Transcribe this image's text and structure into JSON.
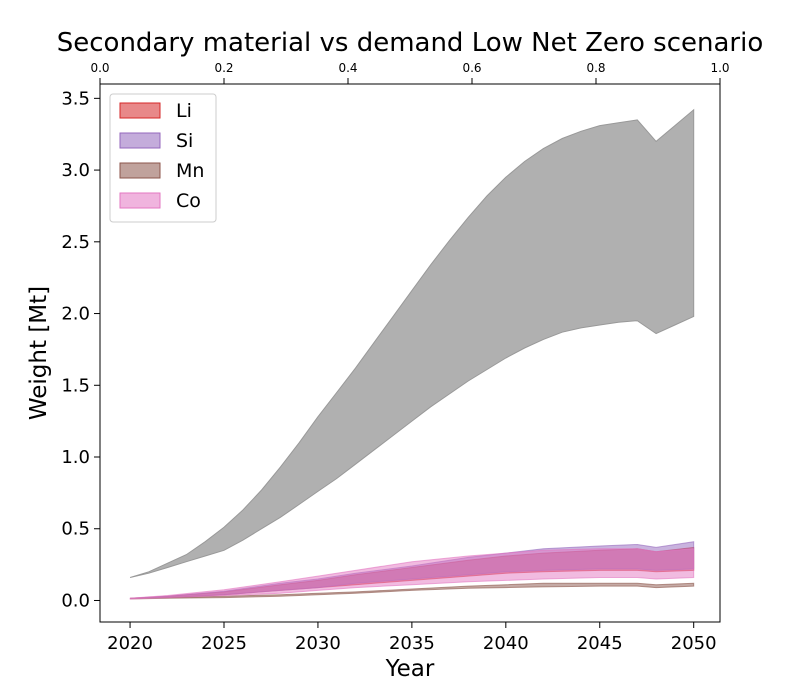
{
  "chart_data": {
    "type": "area",
    "title": "Secondary material vs demand Low Net Zero scenario",
    "xlabel": "Year",
    "ylabel": "Weight [Mt]",
    "xlim": [
      2018.4,
      2051.4
    ],
    "ylim": [
      -0.15,
      3.6
    ],
    "x_ticks": [
      "2020",
      "2025",
      "2030",
      "2035",
      "2040",
      "2045",
      "2050"
    ],
    "y_ticks": [
      "0.0",
      "0.5",
      "1.0",
      "1.5",
      "2.0",
      "2.5",
      "3.0",
      "3.5"
    ],
    "top_axis_ticks": [
      "0.0",
      "0.2",
      "0.4",
      "0.6",
      "0.8",
      "1.0"
    ],
    "grid": false,
    "legend_position": "top-left",
    "demand_band": {
      "color": "#b0b0b0",
      "x": [
        2020,
        2021,
        2022,
        2023,
        2024,
        2025,
        2026,
        2027,
        2028,
        2029,
        2030,
        2031,
        2032,
        2033,
        2034,
        2035,
        2036,
        2037,
        2038,
        2039,
        2040,
        2041,
        2042,
        2043,
        2044,
        2045,
        2046,
        2047,
        2048,
        2049,
        2050
      ],
      "upper": [
        0.16,
        0.2,
        0.26,
        0.32,
        0.41,
        0.51,
        0.63,
        0.77,
        0.93,
        1.1,
        1.28,
        1.45,
        1.62,
        1.8,
        1.98,
        2.16,
        2.34,
        2.51,
        2.67,
        2.82,
        2.95,
        3.06,
        3.15,
        3.22,
        3.27,
        3.31,
        3.33,
        3.35,
        3.2,
        3.31,
        3.42
      ],
      "lower": [
        0.16,
        0.19,
        0.23,
        0.27,
        0.31,
        0.35,
        0.42,
        0.5,
        0.58,
        0.67,
        0.76,
        0.85,
        0.95,
        1.05,
        1.15,
        1.25,
        1.35,
        1.44,
        1.53,
        1.61,
        1.69,
        1.76,
        1.82,
        1.87,
        1.9,
        1.92,
        1.94,
        1.95,
        1.86,
        1.92,
        1.98
      ]
    },
    "series": [
      {
        "name": "Li",
        "color": "#d62728",
        "x": [
          2020,
          2022,
          2025,
          2028,
          2030,
          2032,
          2035,
          2038,
          2040,
          2042,
          2045,
          2047,
          2048,
          2050
        ],
        "lower": [
          0.015,
          0.02,
          0.04,
          0.07,
          0.09,
          0.11,
          0.14,
          0.17,
          0.19,
          0.2,
          0.21,
          0.21,
          0.2,
          0.21
        ],
        "upper": [
          0.015,
          0.03,
          0.06,
          0.11,
          0.14,
          0.18,
          0.23,
          0.28,
          0.31,
          0.33,
          0.35,
          0.36,
          0.34,
          0.37
        ]
      },
      {
        "name": "Si",
        "color": "#9467bd",
        "x": [
          2020,
          2022,
          2025,
          2028,
          2030,
          2032,
          2035,
          2038,
          2040,
          2042,
          2045,
          2047,
          2048,
          2050
        ],
        "lower": [
          0.015,
          0.02,
          0.04,
          0.07,
          0.09,
          0.12,
          0.15,
          0.18,
          0.2,
          0.21,
          0.22,
          0.22,
          0.21,
          0.22
        ],
        "upper": [
          0.015,
          0.03,
          0.065,
          0.12,
          0.15,
          0.19,
          0.24,
          0.3,
          0.33,
          0.36,
          0.38,
          0.39,
          0.37,
          0.41
        ]
      },
      {
        "name": "Mn",
        "color": "#8c564b",
        "x": [
          2020,
          2022,
          2025,
          2028,
          2030,
          2032,
          2035,
          2038,
          2040,
          2042,
          2045,
          2047,
          2048,
          2050
        ],
        "lower": [
          0.01,
          0.015,
          0.02,
          0.03,
          0.04,
          0.05,
          0.07,
          0.085,
          0.09,
          0.095,
          0.1,
          0.1,
          0.09,
          0.1
        ],
        "upper": [
          0.01,
          0.02,
          0.03,
          0.04,
          0.05,
          0.06,
          0.08,
          0.1,
          0.11,
          0.12,
          0.12,
          0.12,
          0.11,
          0.12
        ]
      },
      {
        "name": "Co",
        "color": "#e377c2",
        "x": [
          2020,
          2022,
          2025,
          2028,
          2030,
          2032,
          2035,
          2038,
          2040,
          2042,
          2045,
          2047,
          2048,
          2050
        ],
        "lower": [
          0.01,
          0.02,
          0.035,
          0.05,
          0.07,
          0.09,
          0.11,
          0.13,
          0.14,
          0.15,
          0.16,
          0.16,
          0.15,
          0.16
        ],
        "upper": [
          0.015,
          0.035,
          0.075,
          0.13,
          0.17,
          0.21,
          0.27,
          0.31,
          0.33,
          0.35,
          0.36,
          0.36,
          0.34,
          0.36
        ]
      }
    ]
  }
}
